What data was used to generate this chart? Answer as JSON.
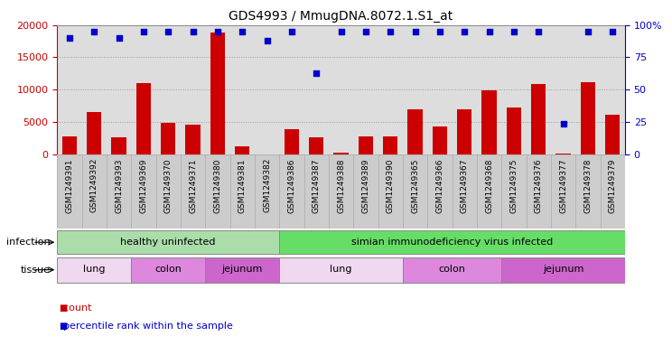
{
  "title": "GDS4993 / MmugDNA.8072.1.S1_at",
  "samples": [
    "GSM1249391",
    "GSM1249392",
    "GSM1249393",
    "GSM1249369",
    "GSM1249370",
    "GSM1249371",
    "GSM1249380",
    "GSM1249381",
    "GSM1249382",
    "GSM1249386",
    "GSM1249387",
    "GSM1249388",
    "GSM1249389",
    "GSM1249390",
    "GSM1249365",
    "GSM1249366",
    "GSM1249367",
    "GSM1249368",
    "GSM1249375",
    "GSM1249376",
    "GSM1249377",
    "GSM1249378",
    "GSM1249379"
  ],
  "counts": [
    2800,
    6500,
    2600,
    11000,
    4900,
    4600,
    18800,
    1200,
    0,
    3900,
    2700,
    300,
    2800,
    2800,
    6900,
    4300,
    6900,
    9900,
    7200,
    10800,
    200,
    11200,
    6100
  ],
  "percentiles": [
    90,
    95,
    90,
    95,
    95,
    95,
    95,
    95,
    88,
    95,
    63,
    95,
    95,
    95,
    95,
    95,
    95,
    95,
    95,
    95,
    24,
    95,
    95
  ],
  "bar_color": "#cc0000",
  "dot_color": "#0000cc",
  "left_axis_color": "#cc0000",
  "right_axis_color": "#0000cc",
  "left_ylim": [
    0,
    20000
  ],
  "right_ylim": [
    0,
    100
  ],
  "left_yticks": [
    0,
    5000,
    10000,
    15000,
    20000
  ],
  "right_yticks": [
    0,
    25,
    50,
    75,
    100
  ],
  "grid_color": "#999999",
  "plot_bg_color": "#dddddd",
  "label_bg_color": "#cccccc",
  "fig_bg_color": "#ffffff",
  "infection_groups": [
    {
      "label": "healthy uninfected",
      "start": 0,
      "end": 9,
      "color": "#aaddaa"
    },
    {
      "label": "simian immunodeficiency virus infected",
      "start": 9,
      "end": 23,
      "color": "#66dd66"
    }
  ],
  "tissue_groups": [
    {
      "label": "lung",
      "start": 0,
      "end": 3,
      "color": "#f0d8f0"
    },
    {
      "label": "colon",
      "start": 3,
      "end": 6,
      "color": "#dd88dd"
    },
    {
      "label": "jejunum",
      "start": 6,
      "end": 9,
      "color": "#cc66cc"
    },
    {
      "label": "lung",
      "start": 9,
      "end": 14,
      "color": "#f0d8f0"
    },
    {
      "label": "colon",
      "start": 14,
      "end": 18,
      "color": "#dd88dd"
    },
    {
      "label": "jejunum",
      "start": 18,
      "end": 23,
      "color": "#cc66cc"
    }
  ],
  "infection_label": "infection",
  "tissue_label": "tissue"
}
